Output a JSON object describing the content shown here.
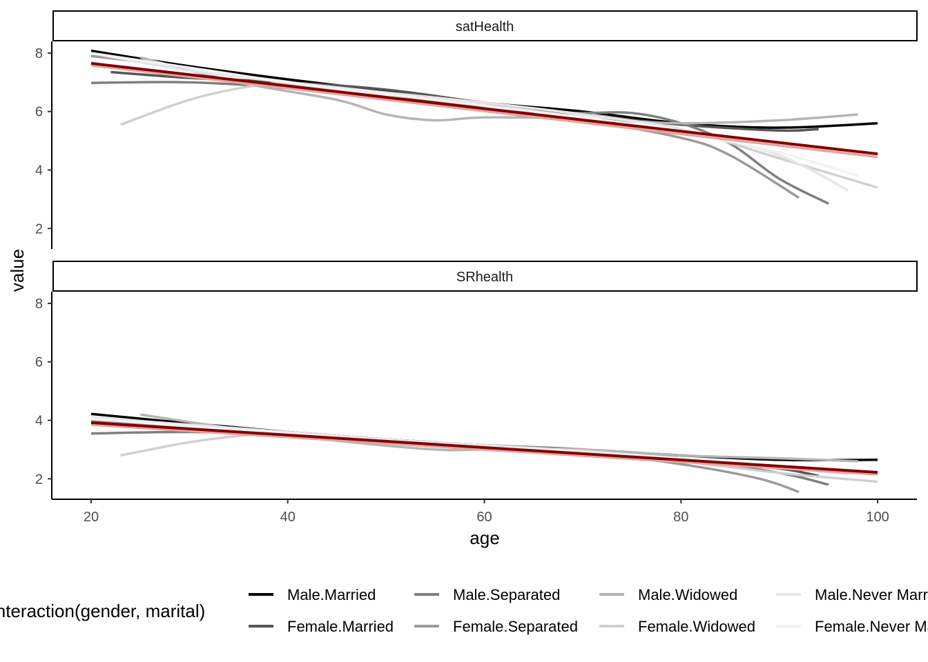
{
  "chart_data": {
    "type": "line",
    "xlabel": "age",
    "ylabel": "value",
    "xlim": [
      16,
      104
    ],
    "ylim": [
      1.3,
      8.4
    ],
    "x_ticks": [
      20,
      40,
      60,
      80,
      100
    ],
    "y_ticks": [
      2,
      4,
      6,
      8
    ],
    "grid": false,
    "legend": {
      "title": "interaction(gender, marital)",
      "placement": "bottom",
      "entries": [
        {
          "label": "Male.Married",
          "color": "#000000"
        },
        {
          "label": "Female.Married",
          "color": "#555555"
        },
        {
          "label": "Male.Separated",
          "color": "#7f7f7f"
        },
        {
          "label": "Female.Separated",
          "color": "#9a9a9a"
        },
        {
          "label": "Male.Widowed",
          "color": "#b5b5b5"
        },
        {
          "label": "Female.Widowed",
          "color": "#d0d0d0"
        },
        {
          "label": "Male.Never Married",
          "color": "#e6e6e6"
        },
        {
          "label": "Female.Never Married",
          "color": "#f2f2f2"
        }
      ]
    },
    "panels": [
      {
        "title": "satHealth",
        "series": [
          {
            "name": "Male.Married",
            "color": "#000000",
            "points": [
              [
                20,
                8.08
              ],
              [
                30,
                7.55
              ],
              [
                40,
                7.1
              ],
              [
                50,
                6.7
              ],
              [
                60,
                6.3
              ],
              [
                70,
                6.0
              ],
              [
                80,
                5.6
              ],
              [
                90,
                5.45
              ],
              [
                100,
                5.6
              ]
            ]
          },
          {
            "name": "Female.Married",
            "color": "#555555",
            "points": [
              [
                22,
                7.35
              ],
              [
                30,
                7.15
              ],
              [
                40,
                7.0
              ],
              [
                50,
                6.75
              ],
              [
                60,
                6.3
              ],
              [
                70,
                5.9
              ],
              [
                80,
                5.55
              ],
              [
                90,
                5.35
              ],
              [
                94,
                5.4
              ]
            ]
          },
          {
            "name": "Male.Separated",
            "color": "#7f7f7f",
            "points": [
              [
                20,
                6.98
              ],
              [
                30,
                7.0
              ],
              [
                40,
                6.8
              ],
              [
                50,
                6.45
              ],
              [
                60,
                6.2
              ],
              [
                65,
                6.0
              ],
              [
                70,
                5.95
              ],
              [
                75,
                5.95
              ],
              [
                80,
                5.6
              ],
              [
                85,
                4.9
              ],
              [
                90,
                3.7
              ],
              [
                95,
                2.85
              ]
            ]
          },
          {
            "name": "Female.Separated",
            "color": "#9a9a9a",
            "points": [
              [
                20,
                7.9
              ],
              [
                30,
                7.5
              ],
              [
                40,
                7.0
              ],
              [
                50,
                6.6
              ],
              [
                60,
                6.1
              ],
              [
                70,
                5.7
              ],
              [
                80,
                5.1
              ],
              [
                85,
                4.5
              ],
              [
                92,
                3.05
              ]
            ]
          },
          {
            "name": "Male.Widowed",
            "color": "#b5b5b5",
            "points": [
              [
                25,
                7.85
              ],
              [
                35,
                7.0
              ],
              [
                45,
                6.4
              ],
              [
                50,
                5.9
              ],
              [
                55,
                5.7
              ],
              [
                60,
                5.8
              ],
              [
                70,
                5.75
              ],
              [
                80,
                5.6
              ],
              [
                90,
                5.7
              ],
              [
                98,
                5.9
              ]
            ]
          },
          {
            "name": "Female.Widowed",
            "color": "#d0d0d0",
            "points": [
              [
                23,
                5.55
              ],
              [
                30,
                6.4
              ],
              [
                36,
                6.85
              ],
              [
                40,
                6.95
              ],
              [
                50,
                6.6
              ],
              [
                60,
                6.3
              ],
              [
                70,
                5.9
              ],
              [
                80,
                5.4
              ],
              [
                90,
                4.4
              ],
              [
                100,
                3.4
              ]
            ]
          },
          {
            "name": "Male.Never Married",
            "color": "#e6e6e6",
            "points": [
              [
                20,
                8.0
              ],
              [
                30,
                7.4
              ],
              [
                40,
                7.0
              ],
              [
                50,
                6.65
              ],
              [
                60,
                6.3
              ],
              [
                70,
                5.9
              ],
              [
                80,
                5.4
              ],
              [
                90,
                4.5
              ],
              [
                97,
                3.3
              ]
            ]
          },
          {
            "name": "Female.Never Married",
            "color": "#f2f2f2",
            "points": [
              [
                20,
                8.0
              ],
              [
                30,
                7.5
              ],
              [
                40,
                7.0
              ],
              [
                50,
                6.6
              ],
              [
                60,
                6.2
              ],
              [
                70,
                5.8
              ],
              [
                80,
                5.3
              ],
              [
                90,
                4.6
              ],
              [
                98,
                3.8
              ]
            ]
          },
          {
            "name": "",
            "color": "#e8a0a0",
            "points": [
              [
                20,
                7.58
              ],
              [
                100,
                4.45
              ]
            ]
          },
          {
            "name": "",
            "color": "#800000",
            "points": [
              [
                20,
                7.65
              ],
              [
                100,
                4.55
              ]
            ]
          }
        ]
      },
      {
        "title": "SRhealth",
        "series": [
          {
            "name": "Male.Married",
            "color": "#000000",
            "points": [
              [
                20,
                4.22
              ],
              [
                30,
                3.9
              ],
              [
                40,
                3.6
              ],
              [
                50,
                3.35
              ],
              [
                60,
                3.15
              ],
              [
                70,
                3.0
              ],
              [
                80,
                2.8
              ],
              [
                90,
                2.65
              ],
              [
                100,
                2.65
              ]
            ]
          },
          {
            "name": "Female.Married",
            "color": "#555555",
            "points": [
              [
                22,
                4.0
              ],
              [
                30,
                3.85
              ],
              [
                40,
                3.6
              ],
              [
                50,
                3.35
              ],
              [
                60,
                3.15
              ],
              [
                70,
                2.95
              ],
              [
                80,
                2.7
              ],
              [
                90,
                2.35
              ],
              [
                94,
                2.1
              ]
            ]
          },
          {
            "name": "Male.Separated",
            "color": "#7f7f7f",
            "points": [
              [
                20,
                3.55
              ],
              [
                30,
                3.6
              ],
              [
                40,
                3.5
              ],
              [
                50,
                3.3
              ],
              [
                60,
                3.15
              ],
              [
                70,
                3.0
              ],
              [
                80,
                2.7
              ],
              [
                90,
                2.2
              ],
              [
                95,
                1.8
              ]
            ]
          },
          {
            "name": "Female.Separated",
            "color": "#9a9a9a",
            "points": [
              [
                20,
                4.0
              ],
              [
                30,
                3.8
              ],
              [
                40,
                3.55
              ],
              [
                50,
                3.3
              ],
              [
                60,
                3.1
              ],
              [
                70,
                2.9
              ],
              [
                80,
                2.5
              ],
              [
                88,
                2.0
              ],
              [
                92,
                1.55
              ]
            ]
          },
          {
            "name": "Male.Widowed",
            "color": "#b5b5b5",
            "points": [
              [
                25,
                4.2
              ],
              [
                35,
                3.7
              ],
              [
                45,
                3.3
              ],
              [
                55,
                3.0
              ],
              [
                60,
                3.0
              ],
              [
                70,
                3.0
              ],
              [
                80,
                2.8
              ],
              [
                90,
                2.7
              ],
              [
                98,
                2.6
              ]
            ]
          },
          {
            "name": "Female.Widowed",
            "color": "#d0d0d0",
            "points": [
              [
                23,
                2.8
              ],
              [
                30,
                3.25
              ],
              [
                36,
                3.5
              ],
              [
                40,
                3.55
              ],
              [
                50,
                3.35
              ],
              [
                60,
                3.1
              ],
              [
                70,
                2.9
              ],
              [
                80,
                2.6
              ],
              [
                90,
                2.2
              ],
              [
                100,
                1.9
              ]
            ]
          },
          {
            "name": "Male.Never Married",
            "color": "#e6e6e6",
            "points": [
              [
                20,
                4.1
              ],
              [
                30,
                3.85
              ],
              [
                40,
                3.6
              ],
              [
                50,
                3.35
              ],
              [
                60,
                3.15
              ],
              [
                70,
                2.95
              ],
              [
                80,
                2.7
              ],
              [
                90,
                2.4
              ],
              [
                97,
                2.15
              ]
            ]
          },
          {
            "name": "Female.Never Married",
            "color": "#f2f2f2",
            "points": [
              [
                20,
                4.05
              ],
              [
                30,
                3.8
              ],
              [
                40,
                3.55
              ],
              [
                50,
                3.3
              ],
              [
                60,
                3.1
              ],
              [
                70,
                2.9
              ],
              [
                80,
                2.7
              ],
              [
                90,
                2.45
              ],
              [
                98,
                2.25
              ]
            ]
          },
          {
            "name": "",
            "color": "#e8a0a0",
            "points": [
              [
                20,
                3.85
              ],
              [
                100,
                2.15
              ]
            ]
          },
          {
            "name": "",
            "color": "#800000",
            "points": [
              [
                20,
                3.92
              ],
              [
                100,
                2.22
              ]
            ]
          }
        ]
      }
    ]
  }
}
